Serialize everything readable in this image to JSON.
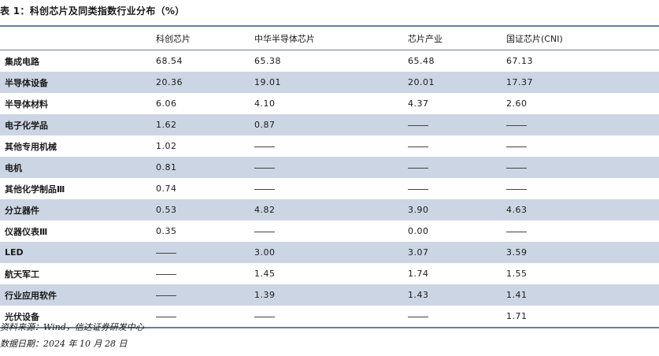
{
  "title": "表 1：科创芯片及同类指数行业分布（%）",
  "table": {
    "columns": [
      "",
      "科创芯片",
      "中华半导体芯片",
      "芯片产业",
      "国证芯片(CNI)"
    ],
    "rows": [
      {
        "label": "集成电路",
        "values": [
          "68.54",
          "65.38",
          "65.48",
          "67.13"
        ]
      },
      {
        "label": "半导体设备",
        "values": [
          "20.36",
          "19.01",
          "20.01",
          "17.37"
        ]
      },
      {
        "label": "半导体材料",
        "values": [
          "6.06",
          "4.10",
          "4.37",
          "2.60"
        ]
      },
      {
        "label": "电子化学品",
        "values": [
          "1.62",
          "0.87",
          null,
          null
        ]
      },
      {
        "label": "其他专用机械",
        "values": [
          "1.02",
          null,
          null,
          null
        ]
      },
      {
        "label": "电机",
        "values": [
          "0.81",
          null,
          null,
          null
        ]
      },
      {
        "label": "其他化学制品Ⅲ",
        "values": [
          "0.74",
          null,
          null,
          null
        ]
      },
      {
        "label": "分立器件",
        "values": [
          "0.53",
          "4.82",
          "3.90",
          "4.63"
        ]
      },
      {
        "label": "仪器仪表Ⅲ",
        "values": [
          "0.35",
          null,
          "0.00",
          null
        ]
      },
      {
        "label": "LED",
        "values": [
          null,
          "3.00",
          "3.07",
          "3.59"
        ]
      },
      {
        "label": "航天军工",
        "values": [
          null,
          "1.45",
          "1.74",
          "1.55"
        ]
      },
      {
        "label": "行业应用软件",
        "values": [
          null,
          "1.39",
          "1.43",
          "1.41"
        ]
      },
      {
        "label": "光伏设备",
        "values": [
          null,
          null,
          null,
          "1.71"
        ]
      }
    ]
  },
  "notes": {
    "source": "资料来源：Wind，信达证券研发中心",
    "date": "数据日期：2024 年 10 月 28 日"
  },
  "colors": {
    "shade": "#ccd5e3",
    "rule": "#6a7d97"
  }
}
